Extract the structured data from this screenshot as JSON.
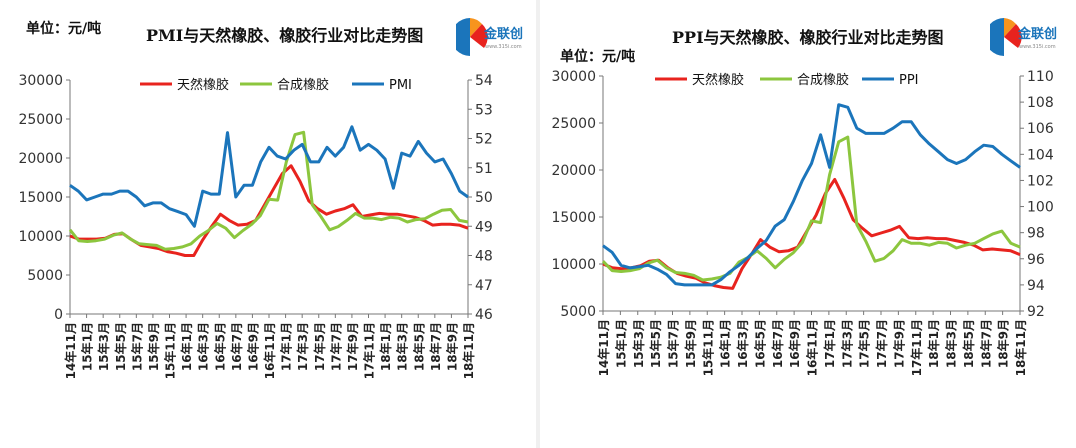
{
  "charts": [
    {
      "unit": "单位：元/吨",
      "title": "PMI与天然橡胶、橡胶行业对比走势图",
      "logo_text": "金联创",
      "logo_sub": "www.315i.com"
    },
    {
      "unit": "单位：元/吨",
      "title": "PPI与天然橡胶、橡胶行业对比走势图",
      "logo_text": "金联创",
      "logo_sub": "www.315i.com"
    }
  ],
  "chart_data": [
    {
      "type": "line",
      "title": "PMI与天然橡胶、橡胶行业对比走势图",
      "x_tick_labels": [
        "14年11月",
        "15年1月",
        "15年3月",
        "15年5月",
        "15年7月",
        "15年9月",
        "15年11月",
        "16年1月",
        "16年3月",
        "16年5月",
        "16年7月",
        "16年9月",
        "16年11月",
        "17年1月",
        "17年3月",
        "17年5月",
        "17年7月",
        "17年9月",
        "17年11月",
        "18年1月",
        "18年3月",
        "18年5月",
        "18年7月",
        "18年9月",
        "18年11月"
      ],
      "ylim_left": [
        0,
        30000
      ],
      "yticks_left": [
        0,
        5000,
        10000,
        15000,
        20000,
        25000,
        30000
      ],
      "ylim_right": [
        46,
        54
      ],
      "yticks_right": [
        46,
        47,
        48,
        49,
        50,
        51,
        52,
        53,
        54
      ],
      "legend": "top-center",
      "grid": false,
      "series": [
        {
          "name": "天然橡胶",
          "axis": "left",
          "color": "#e8231e",
          "values": [
            10000,
            9600,
            9600,
            9600,
            9700,
            10200,
            10300,
            9500,
            8800,
            8600,
            8400,
            8000,
            7800,
            7500,
            7500,
            9500,
            11200,
            12800,
            12000,
            11400,
            11500,
            12000,
            14000,
            16000,
            18000,
            19000,
            17000,
            14500,
            13500,
            12800,
            13200,
            13500,
            14000,
            12500,
            12700,
            12900,
            12800,
            12800,
            12600,
            12400,
            12000,
            11400,
            11500,
            11500,
            11400,
            11000
          ]
        },
        {
          "name": "合成橡胶",
          "axis": "left",
          "color": "#8cc63e",
          "values": [
            10800,
            9400,
            9300,
            9400,
            9600,
            10100,
            10400,
            9600,
            9000,
            8900,
            8800,
            8300,
            8400,
            8600,
            9000,
            10000,
            10700,
            11600,
            11000,
            9800,
            10700,
            11500,
            12600,
            14700,
            14600,
            19500,
            23000,
            23300,
            14000,
            12500,
            10800,
            11200,
            12000,
            12900,
            12300,
            12300,
            12100,
            12400,
            12300,
            11800,
            12100,
            12200,
            12800,
            13300,
            13400,
            12000,
            11800
          ]
        },
        {
          "name": "PMI",
          "axis": "right",
          "color": "#1b75bb",
          "values": [
            50.4,
            50.2,
            49.9,
            50.0,
            50.1,
            50.1,
            50.2,
            50.2,
            50.0,
            49.7,
            49.8,
            49.8,
            49.6,
            49.5,
            49.4,
            49.0,
            50.2,
            50.1,
            50.1,
            52.2,
            50.0,
            50.4,
            50.4,
            51.2,
            51.7,
            51.4,
            51.3,
            51.6,
            51.8,
            51.2,
            51.2,
            51.7,
            51.4,
            51.7,
            52.4,
            51.6,
            51.8,
            51.6,
            51.3,
            50.3,
            51.5,
            51.4,
            51.9,
            51.5,
            51.2,
            51.3,
            50.8,
            50.2,
            50.0
          ]
        }
      ]
    },
    {
      "type": "line",
      "title": "PPI与天然橡胶、橡胶行业对比走势图",
      "x_tick_labels": [
        "14年11月",
        "15年1月",
        "15年3月",
        "15年5月",
        "15年7月",
        "15年9月",
        "15年11月",
        "16年1月",
        "16年3月",
        "16年5月",
        "16年7月",
        "16年9月",
        "16年11月",
        "17年1月",
        "17年3月",
        "17年5月",
        "17年7月",
        "17年9月",
        "17年11月",
        "18年1月",
        "18年3月",
        "18年5月",
        "18年7月",
        "18年9月",
        "18年11月"
      ],
      "ylim_left": [
        5000,
        30000
      ],
      "yticks_left": [
        5000,
        10000,
        15000,
        20000,
        25000,
        30000
      ],
      "ylim_right": [
        92,
        110
      ],
      "yticks_right": [
        92,
        94,
        96,
        98,
        100,
        102,
        104,
        106,
        108,
        110
      ],
      "legend": "top-center",
      "grid": false,
      "series": [
        {
          "name": "天然橡胶",
          "axis": "left",
          "color": "#e8231e",
          "values": [
            10000,
            9600,
            9500,
            9600,
            9800,
            10300,
            10400,
            9600,
            9000,
            8700,
            8500,
            8000,
            7700,
            7500,
            7400,
            9500,
            11000,
            12600,
            11800,
            11300,
            11400,
            11800,
            13500,
            15200,
            17500,
            19000,
            17000,
            14700,
            13800,
            13000,
            13300,
            13600,
            14000,
            12800,
            12700,
            12800,
            12700,
            12700,
            12500,
            12300,
            12000,
            11500,
            11600,
            11500,
            11400,
            11000
          ]
        },
        {
          "name": "合成橡胶",
          "axis": "left",
          "color": "#8cc63e",
          "values": [
            10300,
            9300,
            9200,
            9300,
            9500,
            10100,
            10400,
            9600,
            9100,
            9000,
            8800,
            8300,
            8400,
            8600,
            9000,
            10200,
            10700,
            11400,
            10600,
            9600,
            10500,
            11200,
            12300,
            14600,
            14400,
            19500,
            23000,
            23500,
            14200,
            12400,
            10300,
            10600,
            11400,
            12600,
            12200,
            12200,
            12000,
            12300,
            12200,
            11700,
            12000,
            12200,
            12700,
            13200,
            13500,
            12200,
            11800
          ]
        },
        {
          "name": "PPI",
          "axis": "right",
          "color": "#1b75bb",
          "values": [
            97.0,
            96.5,
            95.5,
            95.3,
            95.4,
            95.5,
            95.2,
            94.8,
            94.1,
            94.0,
            94.0,
            94.0,
            94.0,
            94.4,
            95.0,
            95.5,
            96.1,
            96.8,
            97.4,
            98.5,
            99.0,
            100.4,
            102.0,
            103.3,
            105.5,
            103.0,
            107.8,
            107.6,
            106.0,
            105.6,
            105.6,
            105.6,
            106.0,
            106.5,
            106.5,
            105.5,
            104.8,
            104.2,
            103.6,
            103.3,
            103.6,
            104.2,
            104.7,
            104.6,
            104.0,
            103.5,
            103.0
          ]
        }
      ]
    }
  ]
}
